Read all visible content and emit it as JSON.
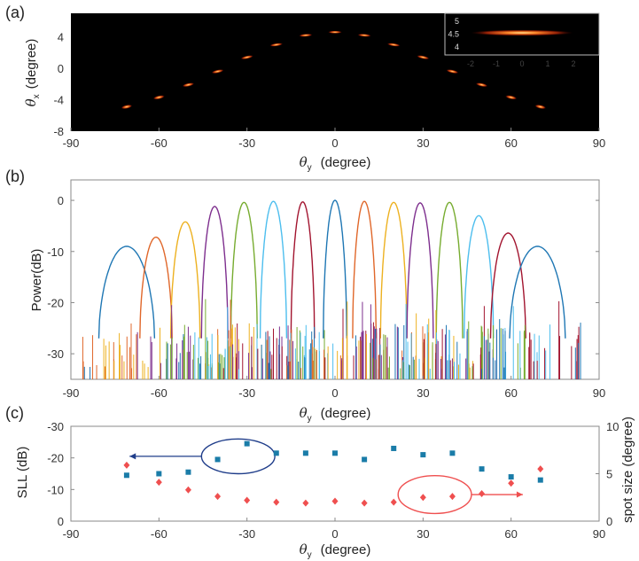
{
  "figure": {
    "panel_labels": [
      "(a)",
      "(b)",
      "(c)"
    ],
    "colors": {
      "heat_bg": "#000000",
      "heat_peak": "#ffd070",
      "heat_mid": "#e84a10",
      "heat_low": "#7a1200",
      "axis": "#4a4a4a",
      "sll_marker": "#1a7ca8",
      "spot_marker": "#ef4f4f",
      "ellipse_left": "#1f3d8a",
      "ellipse_right": "#ef4f4f"
    }
  },
  "chart_data": [
    {
      "id": "a",
      "type": "heatmap",
      "title": "",
      "xlabel_symbol": "θ",
      "xlabel_sub": "y",
      "xlabel_unit": "(degree)",
      "ylabel_symbol": "θ",
      "ylabel_sub": "x",
      "ylabel_unit": "(degree)",
      "xlim": [
        -90,
        90
      ],
      "ylim": [
        -8,
        7
      ],
      "xticks": [
        "-90",
        "-60",
        "-30",
        "0",
        "30",
        "60",
        "90"
      ],
      "xtick_values": [
        -90,
        -60,
        -30,
        0,
        30,
        60,
        90
      ],
      "yticks": [
        "4",
        "0",
        "-4",
        "-8"
      ],
      "ytick_values": [
        4,
        0,
        -4,
        -8
      ],
      "spots": [
        {
          "x": -71,
          "y": -4.9
        },
        {
          "x": -60,
          "y": -3.7
        },
        {
          "x": -50,
          "y": -2.1
        },
        {
          "x": -40,
          "y": -0.4
        },
        {
          "x": -30,
          "y": 1.4
        },
        {
          "x": -20,
          "y": 3.0
        },
        {
          "x": -10,
          "y": 4.2
        },
        {
          "x": 0,
          "y": 4.6
        },
        {
          "x": 10,
          "y": 4.2
        },
        {
          "x": 20,
          "y": 3.0
        },
        {
          "x": 30,
          "y": 1.4
        },
        {
          "x": 40,
          "y": -0.4
        },
        {
          "x": 50,
          "y": -2.1
        },
        {
          "x": 60,
          "y": -3.7
        },
        {
          "x": 70,
          "y": -4.9
        }
      ],
      "inset": {
        "type": "heatmap",
        "xlim": [
          -3,
          3
        ],
        "ylim": [
          3.7,
          5.3
        ],
        "xticks": [
          "-2",
          "-1",
          "0",
          "1",
          "2"
        ],
        "xtick_values": [
          -2,
          -1,
          0,
          1,
          2
        ],
        "yticks": [
          "5",
          "4.5",
          "4"
        ],
        "ytick_values": [
          5,
          4.5,
          4
        ],
        "spot": {
          "x": 0,
          "y": 4.55,
          "x_halfwidth": 2.0
        }
      }
    },
    {
      "id": "b",
      "type": "line",
      "title": "",
      "ylabel": "Power(dB)",
      "xlabel_symbol": "θ",
      "xlabel_sub": "y",
      "xlabel_unit": "(degree)",
      "xlim": [
        -90,
        90
      ],
      "ylim": [
        -35,
        4
      ],
      "xticks": [
        "-90",
        "-60",
        "-30",
        "0",
        "30",
        "60",
        "90"
      ],
      "xtick_values": [
        -90,
        -60,
        -30,
        0,
        30,
        60,
        90
      ],
      "yticks": [
        "0",
        "-10",
        "-20",
        "-30"
      ],
      "ytick_values": [
        0,
        -10,
        -20,
        -30
      ],
      "beams": [
        {
          "center": -71,
          "peak": -9.0,
          "halfwidth": 9.5,
          "color": "#1f77b4"
        },
        {
          "center": -61,
          "peak": -7.2,
          "halfwidth": 5.5,
          "color": "#e0672a"
        },
        {
          "center": -51,
          "peak": -4.2,
          "halfwidth": 5.0,
          "color": "#edb120"
        },
        {
          "center": -41,
          "peak": -1.2,
          "halfwidth": 4.5,
          "color": "#7e2f8e"
        },
        {
          "center": -31,
          "peak": -0.4,
          "halfwidth": 4.5,
          "color": "#77ac30"
        },
        {
          "center": -21,
          "peak": -0.2,
          "halfwidth": 4.5,
          "color": "#4dbeee"
        },
        {
          "center": -11,
          "peak": -0.3,
          "halfwidth": 4.0,
          "color": "#a2142f"
        },
        {
          "center": 0,
          "peak": 0.0,
          "halfwidth": 4.0,
          "color": "#1f77b4"
        },
        {
          "center": 10,
          "peak": -0.2,
          "halfwidth": 4.0,
          "color": "#e0672a"
        },
        {
          "center": 20,
          "peak": -0.4,
          "halfwidth": 4.5,
          "color": "#edb120"
        },
        {
          "center": 29,
          "peak": -0.5,
          "halfwidth": 4.5,
          "color": "#7e2f8e"
        },
        {
          "center": 39,
          "peak": -0.4,
          "halfwidth": 4.5,
          "color": "#77ac30"
        },
        {
          "center": 49,
          "peak": -3.0,
          "halfwidth": 5.0,
          "color": "#4dbeee"
        },
        {
          "center": 59,
          "peak": -6.4,
          "halfwidth": 6.0,
          "color": "#a2142f"
        },
        {
          "center": 69,
          "peak": -9.0,
          "halfwidth": 9.5,
          "color": "#1f77b4"
        }
      ],
      "floor_db": -35
    },
    {
      "id": "c",
      "type": "scatter",
      "title": "",
      "ylabel_left": "SLL (dB)",
      "ylabel_right": "spot size (degree)",
      "xlabel_symbol": "θ",
      "xlabel_sub": "y",
      "xlabel_unit": "(degree)",
      "xlim": [
        -90,
        90
      ],
      "ylim_left": [
        0,
        -30
      ],
      "ylim_right": [
        0,
        10
      ],
      "xticks": [
        "-90",
        "-60",
        "-30",
        "0",
        "30",
        "60",
        "90"
      ],
      "xtick_values": [
        -90,
        -60,
        -30,
        0,
        30,
        60,
        90
      ],
      "yticks_left": [
        "-30",
        "-20",
        "-10",
        "0"
      ],
      "ytick_left_values": [
        -30,
        -20,
        -10,
        0
      ],
      "yticks_right": [
        "10",
        "5",
        "0"
      ],
      "ytick_right_values": [
        10,
        5,
        0
      ],
      "series": [
        {
          "axis": "left",
          "marker": "square",
          "x": [
            -71,
            -60,
            -50,
            -40,
            -30,
            -20,
            -10,
            0,
            10,
            20,
            30,
            40,
            50,
            60,
            70
          ],
          "y": [
            -14.5,
            -15.0,
            -15.5,
            -19.5,
            -24.5,
            -21.5,
            -21.5,
            -21.5,
            -19.5,
            -23.0,
            -21.0,
            -21.5,
            -16.5,
            -14.0,
            -13.0
          ]
        },
        {
          "axis": "right",
          "marker": "diamond",
          "x": [
            -71,
            -60,
            -50,
            -40,
            -30,
            -20,
            -10,
            0,
            10,
            20,
            30,
            40,
            50,
            60,
            70
          ],
          "y": [
            5.9,
            4.1,
            3.3,
            2.6,
            2.2,
            2.0,
            1.9,
            2.1,
            1.9,
            2.0,
            2.5,
            2.6,
            2.9,
            4.0,
            5.5
          ]
        }
      ],
      "annotations": [
        {
          "shape": "ellipse",
          "cx": -33,
          "cy_left": -20.5,
          "rx_deg": 12.5,
          "ry_left": 5.5,
          "arrow_to_x": -70,
          "direction": "left",
          "color_key": "ellipse_left"
        },
        {
          "shape": "ellipse",
          "cx": 34,
          "cy_right": 2.8,
          "rx_deg": 12.5,
          "ry_right": 2.0,
          "arrow_to_x": 64,
          "direction": "right",
          "color_key": "ellipse_right"
        }
      ]
    }
  ]
}
